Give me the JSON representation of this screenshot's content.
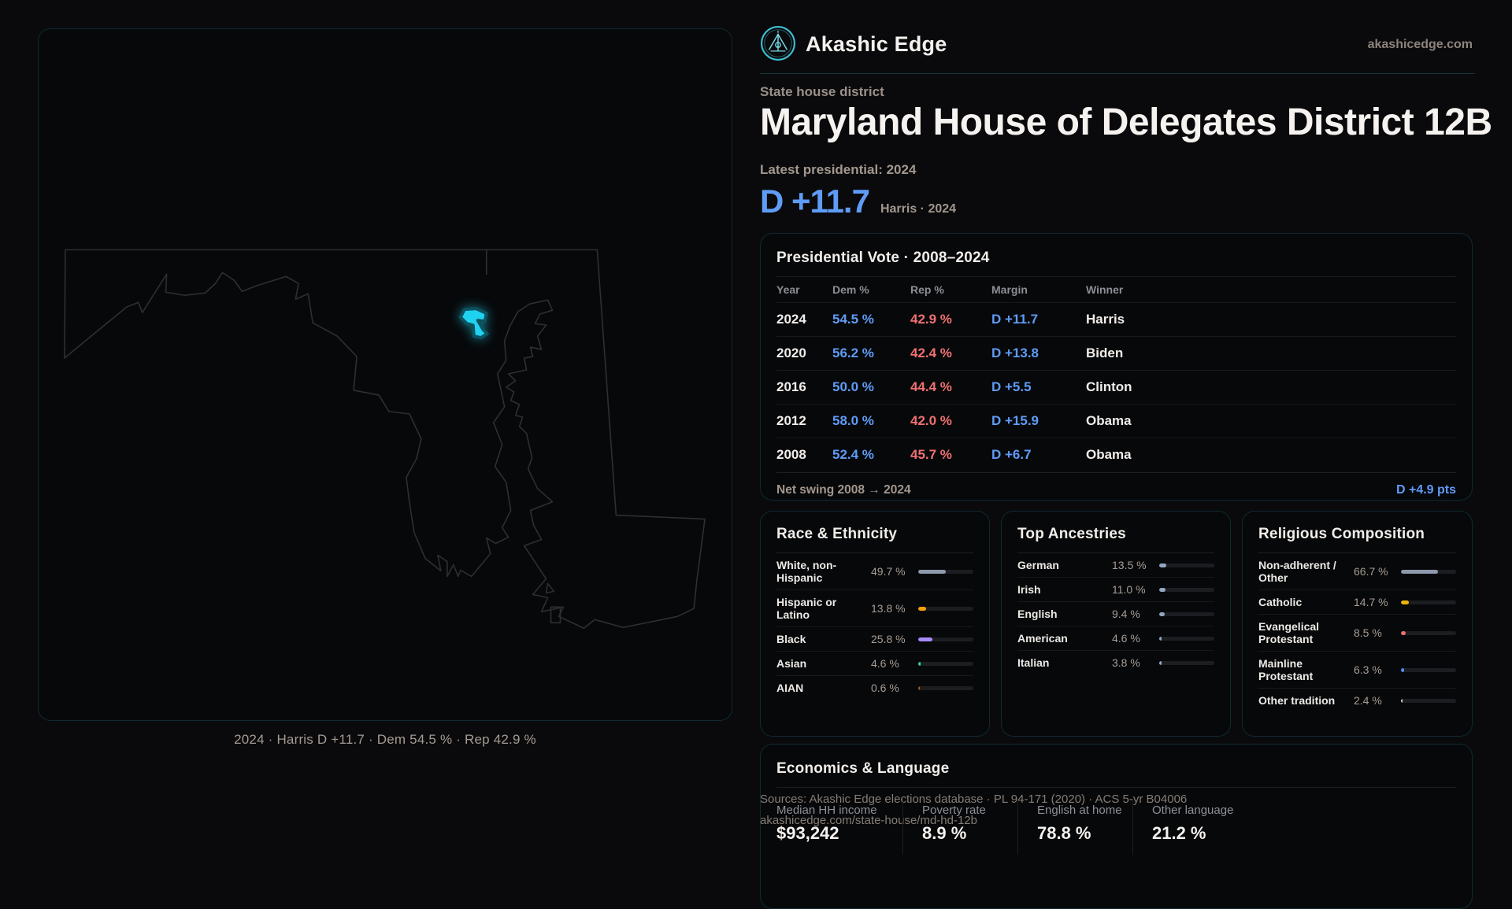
{
  "brand": {
    "name": "Akashic Edge",
    "site": "akashicedge.com"
  },
  "header": {
    "kicker": "State house district",
    "title": "Maryland House of Delegates District 12B",
    "latest_label": "Latest presidential: 2024",
    "margin_big": "D +11.7",
    "margin_context": "Harris · 2024"
  },
  "map": {
    "caption": "2024 · Harris D +11.7 · Dem 54.5 % · Rep 42.9 %",
    "highlight_color": "#22d3ee",
    "outline_color": "#2e2f33"
  },
  "presidential": {
    "title": "Presidential Vote · 2008–2024",
    "columns": [
      "Year",
      "Dem %",
      "Rep %",
      "Margin",
      "Winner"
    ],
    "rows": [
      {
        "year": "2024",
        "dem": "54.5 %",
        "rep": "42.9 %",
        "margin": "D +11.7",
        "winner": "Harris"
      },
      {
        "year": "2020",
        "dem": "56.2 %",
        "rep": "42.4 %",
        "margin": "D +13.8",
        "winner": "Biden"
      },
      {
        "year": "2016",
        "dem": "50.0 %",
        "rep": "44.4 %",
        "margin": "D +5.5",
        "winner": "Clinton"
      },
      {
        "year": "2012",
        "dem": "58.0 %",
        "rep": "42.0 %",
        "margin": "D +15.9",
        "winner": "Obama"
      },
      {
        "year": "2008",
        "dem": "52.4 %",
        "rep": "45.7 %",
        "margin": "D +6.7",
        "winner": "Obama"
      }
    ],
    "net_swing_label": "Net swing 2008 → 2024",
    "net_swing_value": "D +4.9 pts"
  },
  "race": {
    "title": "Race & Ethnicity",
    "rows": [
      {
        "label": "White, non-Hispanic",
        "value": "49.7 %",
        "pct": 49.7,
        "color": "#8e99ad"
      },
      {
        "label": "Hispanic or Latino",
        "value": "13.8 %",
        "pct": 13.8,
        "color": "#f59e0b"
      },
      {
        "label": "Black",
        "value": "25.8 %",
        "pct": 25.8,
        "color": "#a78bfa"
      },
      {
        "label": "Asian",
        "value": "4.6 %",
        "pct": 4.6,
        "color": "#2dd4a0"
      },
      {
        "label": "AIAN",
        "value": "0.6 %",
        "pct": 0.6,
        "color": "#b45309"
      }
    ]
  },
  "ancestries": {
    "title": "Top Ancestries",
    "rows": [
      {
        "label": "German",
        "value": "13.5 %",
        "pct": 13.5,
        "color": "#93a7c2"
      },
      {
        "label": "Irish",
        "value": "11.0 %",
        "pct": 11.0,
        "color": "#93a7c2"
      },
      {
        "label": "English",
        "value": "9.4 %",
        "pct": 9.4,
        "color": "#93a7c2"
      },
      {
        "label": "American",
        "value": "4.6 %",
        "pct": 4.6,
        "color": "#93a7c2"
      },
      {
        "label": "Italian",
        "value": "3.8 %",
        "pct": 3.8,
        "color": "#93a7c2"
      }
    ]
  },
  "religion": {
    "title": "Religious Composition",
    "rows": [
      {
        "label": "Non-adherent / Other",
        "value": "66.7 %",
        "pct": 66.7,
        "color": "#8e99ad"
      },
      {
        "label": "Catholic",
        "value": "14.7 %",
        "pct": 14.7,
        "color": "#eab308"
      },
      {
        "label": "Evangelical Protestant",
        "value": "8.5 %",
        "pct": 8.5,
        "color": "#ef7171"
      },
      {
        "label": "Mainline Protestant",
        "value": "6.3 %",
        "pct": 6.3,
        "color": "#4d8ef7"
      },
      {
        "label": "Other tradition",
        "value": "2.4 %",
        "pct": 2.4,
        "color": "#c9ccd4"
      }
    ]
  },
  "economics": {
    "title": "Economics & Language",
    "stats": [
      {
        "label": "Median HH income",
        "value": "$93,242"
      },
      {
        "label": "Poverty rate",
        "value": "8.9 %"
      },
      {
        "label": "English at home",
        "value": "78.8 %"
      },
      {
        "label": "Other language",
        "value": "21.2 %"
      }
    ]
  },
  "sources": {
    "line1": "Sources: Akashic Edge elections database · PL 94-171 (2020) · ACS 5-yr B04006",
    "line2": "akashicedge.com/state-house/md-hd-12b"
  },
  "colors": {
    "accent_cyan": "#22d3ee",
    "dem_blue": "#5f9cf7",
    "rep_red": "#ee7171",
    "muted_warm": "#a2978e",
    "panel_border": "rgba(56,199,226,0.18)"
  }
}
